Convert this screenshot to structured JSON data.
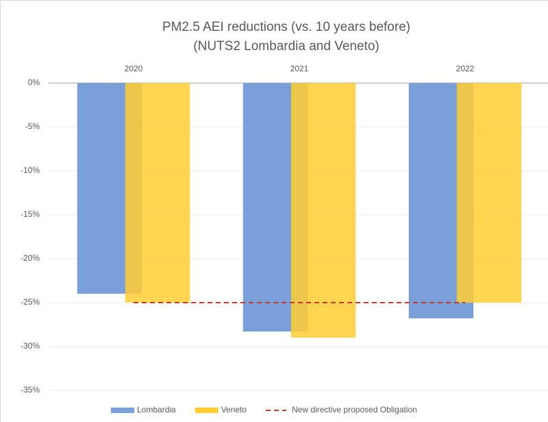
{
  "chart_data": {
    "type": "bar",
    "title": "PM2.5 AEI reductions (vs. 10 years before)",
    "subtitle": "(NUTS2 Lombardia and Veneto)",
    "categories": [
      "2020",
      "2021",
      "2022"
    ],
    "series": [
      {
        "name": "Lombardia",
        "color": "#7b9fd8",
        "values": [
          -24,
          -28.3,
          -26.8
        ]
      },
      {
        "name": "Veneto",
        "color": "#ffcc33",
        "values": [
          -25,
          -29,
          -25
        ]
      },
      {
        "name": "New directive proposed Obligation",
        "color": "#c0392b",
        "type": "line",
        "dashed": true,
        "values": [
          -25,
          -25,
          -25
        ]
      }
    ],
    "ylim": [
      -38.6,
      0
    ],
    "yticks": [
      {
        "value": 0,
        "label": "0%"
      },
      {
        "value": -5,
        "label": "-5%"
      },
      {
        "value": -10,
        "label": "-10%"
      },
      {
        "value": -15,
        "label": "-15%"
      },
      {
        "value": -20,
        "label": "-20%"
      },
      {
        "value": -25,
        "label": "-25%"
      },
      {
        "value": -30,
        "label": "-30%"
      },
      {
        "value": -35,
        "label": "-35%"
      }
    ],
    "grid": true,
    "legend": "bottom"
  }
}
